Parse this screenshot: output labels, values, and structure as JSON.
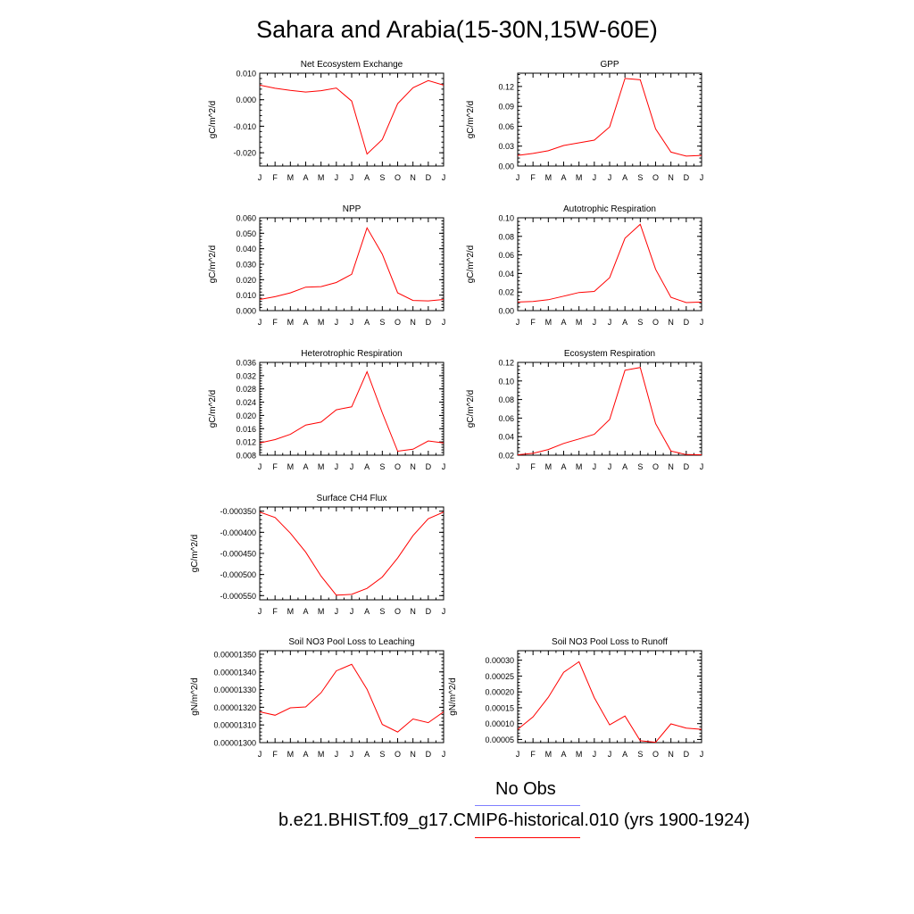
{
  "title": "Sahara and Arabia(15-30N,15W-60E)",
  "months": [
    "J",
    "F",
    "M",
    "A",
    "M",
    "J",
    "J",
    "A",
    "S",
    "O",
    "N",
    "D",
    "J"
  ],
  "legend": {
    "obs_label": "No Obs",
    "obs_color": "#7f7fff",
    "model_label": "b.e21.BHIST.f09_g17.CMIP6-historical.010 (yrs 1900-1924)",
    "model_color": "#ff0000"
  },
  "chart_data": [
    {
      "type": "line",
      "title": "Net Ecosystem Exchange",
      "ylabel": "gC/m^2/d",
      "ylim": [
        -0.025,
        0.01
      ],
      "yticks": [
        0.01,
        0.0,
        -0.01,
        -0.02
      ],
      "ytick_labels": [
        "0.010",
        "0.000",
        "-0.010",
        "-0.020"
      ],
      "x": [
        "J",
        "F",
        "M",
        "A",
        "M",
        "J",
        "J",
        "A",
        "S",
        "O",
        "N",
        "D",
        "J"
      ],
      "values": [
        0.0055,
        0.0043,
        0.0035,
        0.0029,
        0.0034,
        0.0044,
        -0.0005,
        -0.0205,
        -0.015,
        -0.0015,
        0.0045,
        0.0072,
        0.0055
      ]
    },
    {
      "type": "line",
      "title": "GPP",
      "ylabel": "gC/m^2/d",
      "ylim": [
        0.0,
        0.14
      ],
      "yticks": [
        0.0,
        0.03,
        0.06,
        0.09,
        0.12
      ],
      "ytick_labels": [
        "0.00",
        "0.03",
        "0.06",
        "0.09",
        "0.12"
      ],
      "x": [
        "J",
        "F",
        "M",
        "A",
        "M",
        "J",
        "J",
        "A",
        "S",
        "O",
        "N",
        "D",
        "J"
      ],
      "values": [
        0.016,
        0.019,
        0.023,
        0.031,
        0.035,
        0.039,
        0.059,
        0.132,
        0.13,
        0.056,
        0.021,
        0.015,
        0.016
      ]
    },
    {
      "type": "line",
      "title": "NPP",
      "ylabel": "gC/m^2/d",
      "ylim": [
        0.0,
        0.06
      ],
      "yticks": [
        0.0,
        0.01,
        0.02,
        0.03,
        0.04,
        0.05,
        0.06
      ],
      "ytick_labels": [
        "0.000",
        "0.010",
        "0.020",
        "0.030",
        "0.040",
        "0.050",
        "0.060"
      ],
      "x": [
        "J",
        "F",
        "M",
        "A",
        "M",
        "J",
        "J",
        "A",
        "S",
        "O",
        "N",
        "D",
        "J"
      ],
      "values": [
        0.0072,
        0.009,
        0.0115,
        0.0152,
        0.0155,
        0.0182,
        0.0235,
        0.0535,
        0.0365,
        0.0115,
        0.0066,
        0.0063,
        0.0072
      ]
    },
    {
      "type": "line",
      "title": "Autotrophic Respiration",
      "ylabel": "gC/m^2/d",
      "ylim": [
        0.0,
        0.1
      ],
      "yticks": [
        0.0,
        0.02,
        0.04,
        0.06,
        0.08,
        0.1
      ],
      "ytick_labels": [
        "0.00",
        "0.02",
        "0.04",
        "0.06",
        "0.08",
        "0.10"
      ],
      "x": [
        "J",
        "F",
        "M",
        "A",
        "M",
        "J",
        "J",
        "A",
        "S",
        "O",
        "N",
        "D",
        "J"
      ],
      "values": [
        0.0092,
        0.0098,
        0.0117,
        0.0156,
        0.0195,
        0.0207,
        0.0355,
        0.078,
        0.093,
        0.0445,
        0.0143,
        0.0087,
        0.0092
      ]
    },
    {
      "type": "line",
      "title": "Heterotrophic Respiration",
      "ylabel": "gC/m^2/d",
      "ylim": [
        0.008,
        0.036
      ],
      "yticks": [
        0.008,
        0.012,
        0.016,
        0.02,
        0.024,
        0.028,
        0.032,
        0.036
      ],
      "ytick_labels": [
        "0.008",
        "0.012",
        "0.016",
        "0.020",
        "0.024",
        "0.028",
        "0.032",
        "0.036"
      ],
      "x": [
        "J",
        "F",
        "M",
        "A",
        "M",
        "J",
        "J",
        "A",
        "S",
        "O",
        "N",
        "D",
        "J"
      ],
      "values": [
        0.0117,
        0.0127,
        0.0143,
        0.0171,
        0.018,
        0.0217,
        0.0226,
        0.0332,
        0.0208,
        0.0092,
        0.0098,
        0.0123,
        0.0117
      ]
    },
    {
      "type": "line",
      "title": "Ecosystem Respiration",
      "ylabel": "gC/m^2/d",
      "ylim": [
        0.02,
        0.12
      ],
      "yticks": [
        0.02,
        0.04,
        0.06,
        0.08,
        0.1,
        0.12
      ],
      "ytick_labels": [
        "0.02",
        "0.04",
        "0.06",
        "0.08",
        "0.10",
        "0.12"
      ],
      "x": [
        "J",
        "F",
        "M",
        "A",
        "M",
        "J",
        "J",
        "A",
        "S",
        "O",
        "N",
        "D",
        "J"
      ],
      "values": [
        0.0205,
        0.022,
        0.0262,
        0.0327,
        0.0375,
        0.0425,
        0.0585,
        0.1115,
        0.1145,
        0.054,
        0.0245,
        0.0207,
        0.0205
      ]
    },
    {
      "type": "line",
      "title": "Surface CH4 Flux",
      "ylabel": "gC/m^2/d",
      "ylim": [
        -0.00056,
        -0.00034
      ],
      "yticks": [
        -0.00035,
        -0.0004,
        -0.00045,
        -0.0005,
        -0.00055
      ],
      "ytick_labels": [
        "-0.000350",
        "-0.000400",
        "-0.000450",
        "-0.000500",
        "-0.000550"
      ],
      "x": [
        "J",
        "F",
        "M",
        "A",
        "M",
        "J",
        "J",
        "A",
        "S",
        "O",
        "N",
        "D",
        "J"
      ],
      "values": [
        -0.000352,
        -0.000365,
        -0.000402,
        -0.000447,
        -0.000504,
        -0.000549,
        -0.000547,
        -0.000533,
        -0.000506,
        -0.000461,
        -0.000408,
        -0.000368,
        -0.000352
      ]
    },
    {
      "type": "line",
      "title": "Soil NO3 Pool Loss to Leaching",
      "ylabel": "gN/m^2/d",
      "ylim": [
        1.3e-05,
        1.352e-05
      ],
      "yticks": [
        1.3e-05,
        1.31e-05,
        1.32e-05,
        1.33e-05,
        1.34e-05,
        1.35e-05
      ],
      "ytick_labels": [
        "0.00001300",
        "0.00001310",
        "0.00001320",
        "0.00001330",
        "0.00001340",
        "0.00001350"
      ],
      "x": [
        "J",
        "F",
        "M",
        "A",
        "M",
        "J",
        "J",
        "A",
        "S",
        "O",
        "N",
        "D",
        "J"
      ],
      "values": [
        1.3174e-05,
        1.3155e-05,
        1.3197e-05,
        1.3202e-05,
        1.3282e-05,
        1.3406e-05,
        1.3443e-05,
        1.3302e-05,
        1.3103e-05,
        1.306e-05,
        1.3134e-05,
        1.3113e-05,
        1.3174e-05
      ]
    },
    {
      "type": "line",
      "title": "Soil NO3 Pool Loss to Runoff",
      "ylabel": "gN/m^2/d",
      "ylim": [
        4e-05,
        0.00033
      ],
      "yticks": [
        5e-05,
        0.0001,
        0.00015,
        0.0002,
        0.00025,
        0.0003
      ],
      "ytick_labels": [
        "0.00005",
        "0.00010",
        "0.00015",
        "0.00020",
        "0.00025",
        "0.00030"
      ],
      "x": [
        "J",
        "F",
        "M",
        "A",
        "M",
        "J",
        "J",
        "A",
        "S",
        "O",
        "N",
        "D",
        "J"
      ],
      "values": [
        8.2e-05,
        0.000121,
        0.000183,
        0.000262,
        0.000295,
        0.000182,
        9.6e-05,
        0.000124,
        4.6e-05,
        4.1e-05,
        9.9e-05,
        8.6e-05,
        8.2e-05
      ]
    }
  ]
}
